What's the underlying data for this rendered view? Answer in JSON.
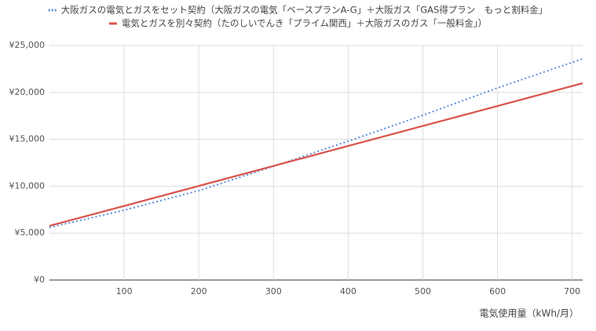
{
  "chart_data": {
    "type": "line",
    "series": [
      {
        "name": "大阪ガスの電気とガスをセット契約（大阪ガスの電気「ベースプランA-G」＋大阪ガス「GAS得プラン　もっと割料金」",
        "color": "#5b8fdb",
        "dash": "dotted",
        "x": [
          0,
          100,
          200,
          300,
          400,
          500,
          600,
          714
        ],
        "values": [
          5600,
          7440,
          9530,
          12120,
          14800,
          17560,
          20480,
          23580
        ]
      },
      {
        "name": "電気とガスを別々契約（たのしいでんき「プライム関西」＋大阪ガスのガス「一般料金」）",
        "color": "#d9534a",
        "dash": "solid",
        "x": [
          0,
          100,
          200,
          300,
          400,
          500,
          600,
          714
        ],
        "values": [
          5770,
          7900,
          10030,
          12160,
          14290,
          16420,
          18550,
          20980
        ]
      }
    ],
    "x_label": "電気使用量（kWh/月）",
    "xlim": [
      0,
      714
    ],
    "xticks": [
      100,
      200,
      300,
      400,
      500,
      600,
      700
    ],
    "ylim": [
      0,
      25000
    ],
    "yticks": [
      {
        "value": 0,
        "label": "¥0"
      },
      {
        "value": 5000,
        "label": "¥5,000"
      },
      {
        "value": 10000,
        "label": "¥10,000"
      },
      {
        "value": 15000,
        "label": "¥15,000"
      },
      {
        "value": 20000,
        "label": "¥20,000"
      },
      {
        "value": 25000,
        "label": "¥25,000"
      }
    ],
    "grid": true
  }
}
